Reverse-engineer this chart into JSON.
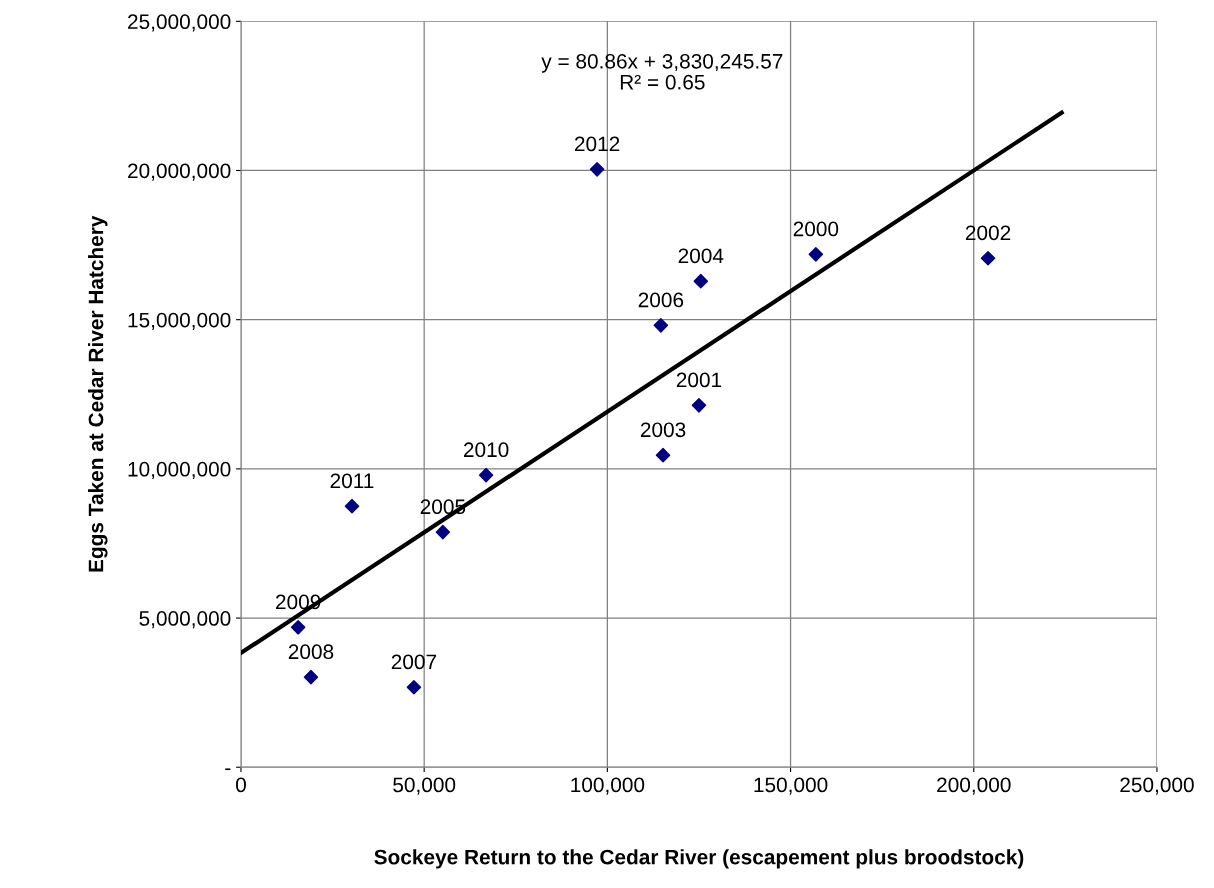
{
  "chart_data": {
    "type": "scatter",
    "xlabel": "Sockeye Return to the Cedar River (escapement plus broodstock)",
    "ylabel": "Eggs Taken at Cedar River Hatchery",
    "x": [
      97200,
      156900,
      203900,
      125500,
      114600,
      125000,
      115200,
      66900,
      30300,
      55100,
      15600,
      19100,
      47200
    ],
    "series": [
      {
        "color": "#000080",
        "marker": "diamond",
        "values": [
          20040000,
          17190000,
          17060000,
          16290000,
          14810000,
          12130000,
          10460000,
          9790000,
          8750000,
          7880000,
          4690000,
          3020000,
          2680000
        ]
      },
      {
        "type": "line",
        "color": "#000000",
        "marker": "none",
        "line_style": "solid",
        "x": [
          0,
          224000
        ],
        "values": [
          3830000,
          21940000
        ]
      }
    ],
    "xlim": [
      0,
      250000
    ],
    "xticks": [
      0,
      {
        "value": 50000,
        "label": "50,000"
      },
      {
        "value": 100000,
        "label": "100,000"
      },
      {
        "value": 150000,
        "label": "150,000"
      },
      {
        "value": 200000,
        "label": "200,000"
      },
      {
        "value": 250000,
        "label": "250,000"
      }
    ],
    "ylim": [
      0,
      25000000
    ],
    "yticks": [
      {
        "value": 0,
        "label": "-"
      },
      {
        "value": 5000000,
        "label": "5,000,000"
      },
      {
        "value": 10000000,
        "label": "10,000,000"
      },
      {
        "value": 15000000,
        "label": "15,000,000"
      },
      {
        "value": 20000000,
        "label": "20,000,000"
      },
      {
        "value": 25000000,
        "label": "25,000,000"
      }
    ],
    "grid": true,
    "legend": false,
    "annotations": [
      {
        "text": "2012",
        "x": 97200,
        "y": 20040000
      },
      {
        "text": "2000",
        "x": 156900,
        "y": 17190000
      },
      {
        "text": "2002",
        "x": 203900,
        "y": 17060000
      },
      {
        "text": "2004",
        "x": 125500,
        "y": 16290000
      },
      {
        "text": "2006",
        "x": 114600,
        "y": 14810000
      },
      {
        "text": "2001",
        "x": 125000,
        "y": 12130000
      },
      {
        "text": "2003",
        "x": 115200,
        "y": 10460000
      },
      {
        "text": "2010",
        "x": 66900,
        "y": 9790000
      },
      {
        "text": "2011",
        "x": 30300,
        "y": 8750000
      },
      {
        "text": "2005",
        "x": 55100,
        "y": 7880000
      },
      {
        "text": "2009",
        "x": 15600,
        "y": 4690000
      },
      {
        "text": "2008",
        "x": 19100,
        "y": 3020000
      },
      {
        "text": "2007",
        "x": 47200,
        "y": 2680000
      },
      "y = 80.86x + 3,830,245.57\nR² = 0.65"
    ]
  }
}
